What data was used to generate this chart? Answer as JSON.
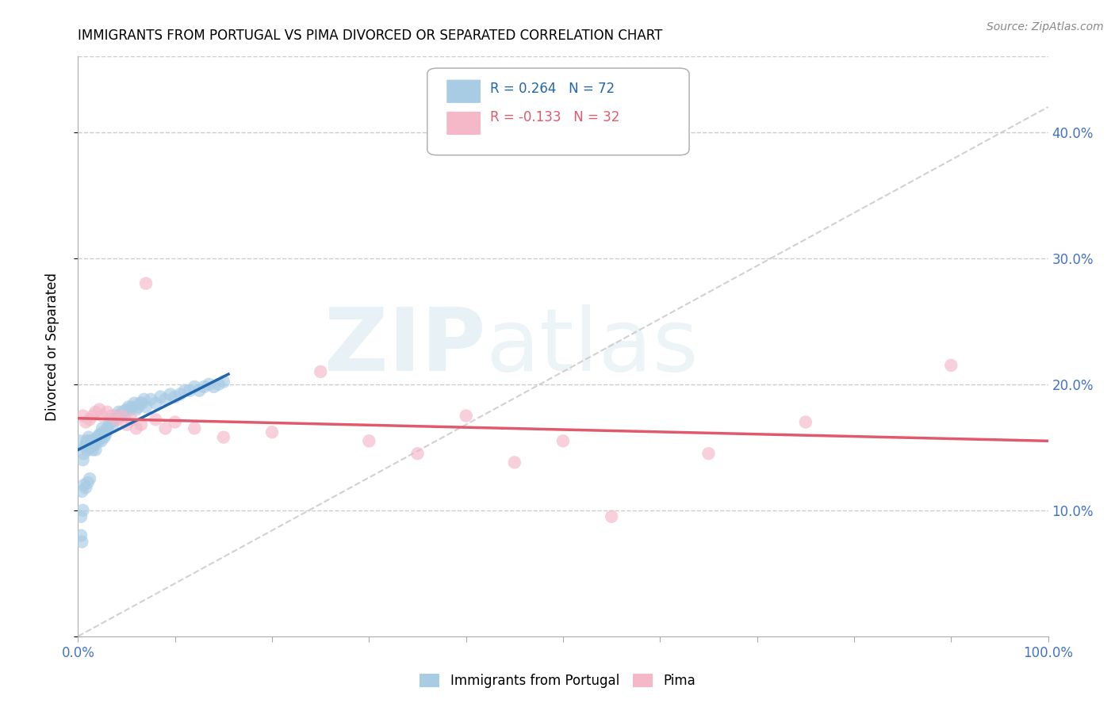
{
  "title": "IMMIGRANTS FROM PORTUGAL VS PIMA DIVORCED OR SEPARATED CORRELATION CHART",
  "source_text": "Source: ZipAtlas.com",
  "ylabel": "Divorced or Separated",
  "legend_label_blue": "Immigrants from Portugal",
  "legend_label_pink": "Pima",
  "R_blue": 0.264,
  "N_blue": 72,
  "R_pink": -0.133,
  "N_pink": 32,
  "xlim": [
    0.0,
    1.0
  ],
  "ylim": [
    0.0,
    0.46
  ],
  "yticks_right": [
    0.1,
    0.2,
    0.3,
    0.4
  ],
  "color_blue": "#a8cce4",
  "color_pink": "#f4b8c8",
  "trendline_blue": "#2166ac",
  "trendline_pink": "#e05a6e",
  "trendline_gray": "#cccccc",
  "right_axis_color": "#4472c4",
  "watermark_zip": "ZIP",
  "watermark_atlas": "atlas",
  "blue_x": [
    0.002,
    0.003,
    0.004,
    0.005,
    0.006,
    0.007,
    0.008,
    0.009,
    0.01,
    0.011,
    0.012,
    0.013,
    0.014,
    0.015,
    0.016,
    0.017,
    0.018,
    0.019,
    0.02,
    0.021,
    0.022,
    0.023,
    0.024,
    0.025,
    0.026,
    0.027,
    0.028,
    0.029,
    0.03,
    0.032,
    0.034,
    0.036,
    0.038,
    0.04,
    0.042,
    0.044,
    0.046,
    0.048,
    0.05,
    0.052,
    0.054,
    0.056,
    0.058,
    0.06,
    0.062,
    0.064,
    0.066,
    0.068,
    0.07,
    0.075,
    0.08,
    0.085,
    0.09,
    0.095,
    0.1,
    0.105,
    0.11,
    0.115,
    0.12,
    0.125,
    0.13,
    0.135,
    0.14,
    0.145,
    0.15,
    0.004,
    0.006,
    0.008,
    0.01,
    0.012,
    0.003,
    0.005
  ],
  "blue_y": [
    0.155,
    0.08,
    0.075,
    0.14,
    0.145,
    0.15,
    0.152,
    0.155,
    0.148,
    0.158,
    0.155,
    0.15,
    0.155,
    0.148,
    0.155,
    0.152,
    0.148,
    0.155,
    0.158,
    0.155,
    0.16,
    0.16,
    0.155,
    0.165,
    0.162,
    0.158,
    0.16,
    0.162,
    0.165,
    0.168,
    0.17,
    0.168,
    0.172,
    0.175,
    0.178,
    0.175,
    0.178,
    0.175,
    0.18,
    0.182,
    0.18,
    0.182,
    0.185,
    0.18,
    0.182,
    0.185,
    0.185,
    0.188,
    0.182,
    0.188,
    0.185,
    0.19,
    0.188,
    0.192,
    0.19,
    0.192,
    0.195,
    0.195,
    0.198,
    0.195,
    0.198,
    0.2,
    0.198,
    0.2,
    0.202,
    0.115,
    0.12,
    0.118,
    0.122,
    0.125,
    0.095,
    0.1
  ],
  "pink_x": [
    0.005,
    0.008,
    0.012,
    0.015,
    0.018,
    0.022,
    0.025,
    0.03,
    0.035,
    0.04,
    0.045,
    0.05,
    0.055,
    0.06,
    0.065,
    0.07,
    0.08,
    0.09,
    0.1,
    0.12,
    0.15,
    0.2,
    0.25,
    0.3,
    0.35,
    0.4,
    0.45,
    0.5,
    0.55,
    0.65,
    0.75,
    0.9
  ],
  "pink_y": [
    0.175,
    0.17,
    0.172,
    0.175,
    0.178,
    0.18,
    0.175,
    0.178,
    0.175,
    0.172,
    0.175,
    0.168,
    0.172,
    0.165,
    0.168,
    0.28,
    0.172,
    0.165,
    0.17,
    0.165,
    0.158,
    0.162,
    0.21,
    0.155,
    0.145,
    0.175,
    0.138,
    0.155,
    0.095,
    0.145,
    0.17,
    0.215
  ],
  "blue_trendline_x": [
    0.0,
    0.155
  ],
  "blue_trendline_y_start": 0.148,
  "blue_trendline_y_end": 0.208,
  "pink_trendline_x": [
    0.0,
    1.0
  ],
  "pink_trendline_y_start": 0.173,
  "pink_trendline_y_end": 0.155
}
